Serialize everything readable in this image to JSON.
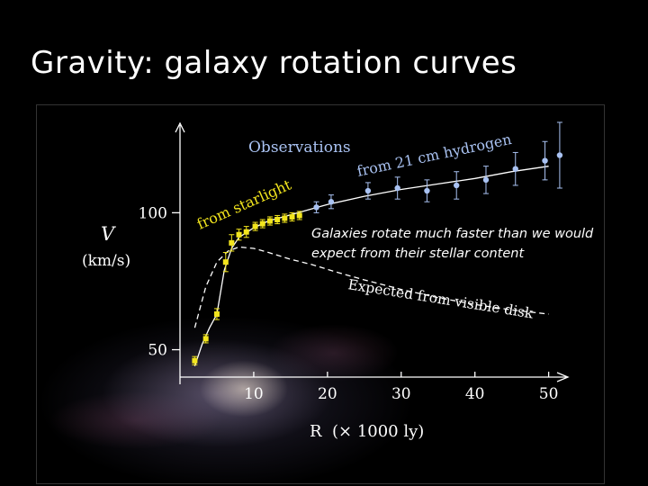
{
  "slide": {
    "title": "Gravity: galaxy rotation curves"
  },
  "colors": {
    "observed": "#a9c2f2",
    "starlight": "#f2e51d",
    "expected": "#ffffff",
    "axis": "#ffffff"
  },
  "chart_data": {
    "type": "scatter",
    "title": "Observations",
    "xlabel": "R  (× 1000 ly)",
    "ylabel": "V (km/s)",
    "ylabel_symbol": "V",
    "ylabel_units": "(km/s)",
    "xlim": [
      0,
      52
    ],
    "ylim": [
      40,
      132
    ],
    "x_ticks": [
      10,
      20,
      30,
      40,
      50
    ],
    "y_ticks": [
      50,
      100
    ],
    "grid": false,
    "series": [
      {
        "name": "from starlight",
        "label": "from  starlight",
        "style": "points-with-errorbars",
        "color": "#f2e51d",
        "x": [
          2.0,
          3.5,
          5.0,
          6.2,
          7.0,
          8.0,
          9.0,
          10.2,
          11.2,
          12.2,
          13.2,
          14.2,
          15.2,
          16.2
        ],
        "y": [
          46,
          54,
          63,
          82,
          89,
          92,
          93,
          95,
          96,
          97,
          97.5,
          98,
          98.5,
          99
        ],
        "err": [
          1.5,
          1.5,
          2.0,
          3.5,
          3.0,
          2.0,
          2.0,
          1.5,
          1.5,
          1.5,
          1.5,
          1.5,
          1.5,
          1.5
        ]
      },
      {
        "name": "from 21 cm hydrogen",
        "label": "from 21 cm hydrogen",
        "style": "points-with-errorbars",
        "color": "#a9c2f2",
        "x": [
          18.5,
          20.5,
          25.5,
          29.5,
          33.5,
          37.5,
          41.5,
          45.5,
          49.5,
          51.5
        ],
        "y": [
          102,
          104,
          108,
          109,
          108,
          110,
          112,
          116,
          119,
          121
        ],
        "err": [
          2.0,
          2.5,
          3.0,
          4.0,
          4.0,
          5.0,
          5.0,
          6.0,
          7.0,
          12.0
        ]
      },
      {
        "name": "Expected from visible disk",
        "label": "Expected from visible disk",
        "style": "dashed-line",
        "color": "#ffffff",
        "x": [
          2,
          3.5,
          5,
          6.5,
          8,
          10,
          12,
          15,
          18,
          21,
          25,
          30,
          35,
          40,
          45,
          50
        ],
        "y": [
          58,
          73,
          82,
          86,
          87.5,
          87,
          85.5,
          83,
          81,
          78.5,
          75.5,
          72,
          69,
          66.5,
          64.5,
          63
        ]
      },
      {
        "name": "fit",
        "style": "solid-line",
        "color": "#ffffff",
        "x": [
          2,
          3,
          4,
          5,
          6,
          7,
          8,
          10,
          12,
          14,
          16,
          18,
          20,
          25,
          30,
          35,
          40,
          45,
          50
        ],
        "y": [
          44,
          52,
          58,
          63,
          79,
          87,
          91,
          94.5,
          97,
          98.5,
          100,
          101.5,
          103,
          106,
          108.5,
          110.5,
          112.5,
          115,
          117
        ]
      }
    ],
    "annotations": [
      "Galaxies rotate much faster than we would expect from their stellar content"
    ]
  }
}
